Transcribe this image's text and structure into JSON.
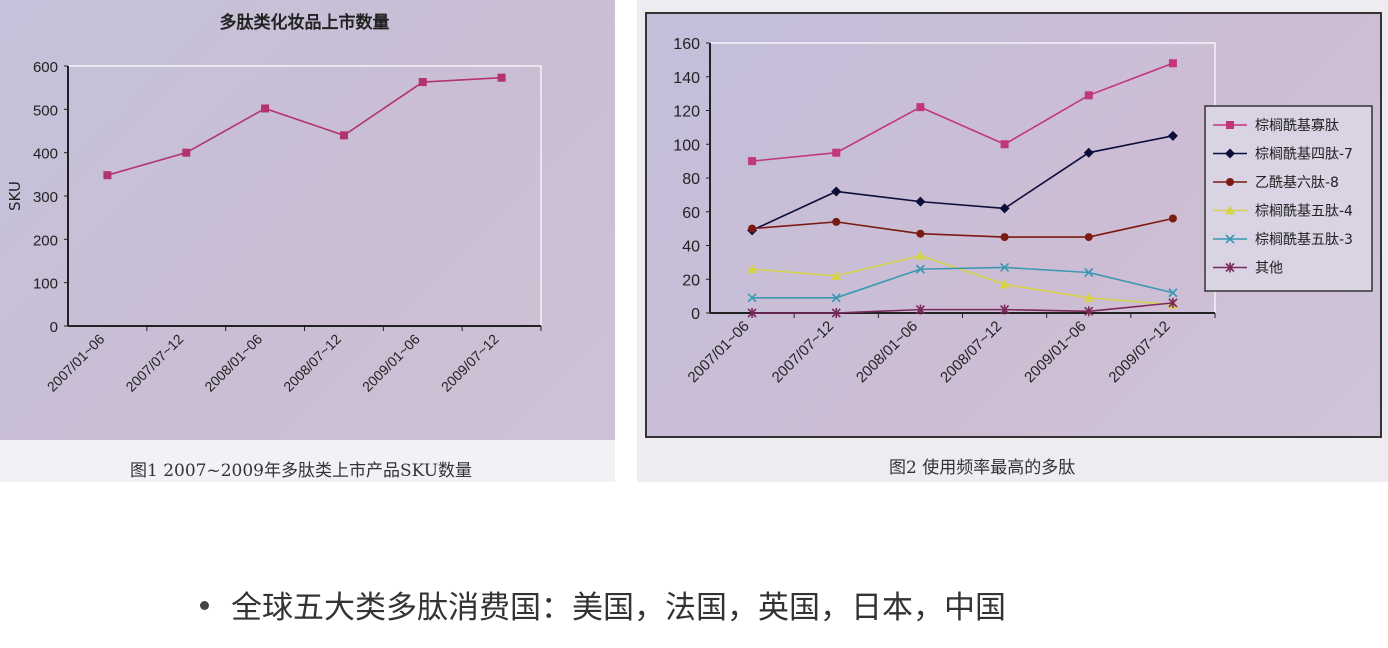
{
  "chart_data": [
    {
      "type": "line",
      "title": "多肽类化妆品上市数量",
      "ylabel": "SKU",
      "xlabel": "",
      "caption": "图1 2007~2009年多肽类上市产品SKU数量",
      "categories": [
        "2007/01~06",
        "2007/07~12",
        "2008/01~06",
        "2008/07~12",
        "2009/01~06",
        "2009/07~12"
      ],
      "ylim": [
        0,
        600
      ],
      "yticks": [
        "0",
        "100",
        "200",
        "300",
        "400",
        "500",
        "600"
      ],
      "grid": false,
      "series": [
        {
          "values": [
            348,
            400,
            502,
            440,
            563,
            573
          ],
          "color": "#b3336e",
          "marker": "square"
        }
      ]
    },
    {
      "type": "line",
      "title": "",
      "caption": "图2 使用频率最高的多肽",
      "categories": [
        "2007/01~06",
        "2007/07~12",
        "2008/01~06",
        "2008/07~12",
        "2009/01~06",
        "2009/07~12"
      ],
      "ylim": [
        0,
        160
      ],
      "yticks": [
        "0",
        "20",
        "40",
        "60",
        "80",
        "100",
        "120",
        "140",
        "160"
      ],
      "grid": false,
      "legend": "right",
      "series": [
        {
          "name": "棕榈酰基寡肽",
          "values": [
            90,
            95,
            122,
            100,
            129,
            148
          ],
          "color": "#c2367a",
          "marker": "square"
        },
        {
          "name": "棕榈酰基四肽-7",
          "values": [
            49,
            72,
            66,
            62,
            95,
            105
          ],
          "color": "#0d0d3a",
          "marker": "diamond"
        },
        {
          "name": "乙酰基六肽-8",
          "values": [
            50,
            54,
            47,
            45,
            45,
            56
          ],
          "color": "#7a1a12",
          "marker": "circle"
        },
        {
          "name": "棕榈酰基五肽-4",
          "values": [
            26,
            22,
            34,
            17,
            9,
            5
          ],
          "color": "#d6d24a",
          "marker": "triangle"
        },
        {
          "name": "棕榈酰基五肽-3",
          "values": [
            9,
            9,
            26,
            27,
            24,
            12
          ],
          "color": "#3a98b0",
          "marker": "x"
        },
        {
          "name": "其他",
          "values": [
            0,
            0,
            2,
            2,
            1,
            6
          ],
          "color": "#7a2a5a",
          "marker": "star"
        }
      ]
    }
  ],
  "bullet": "全球五大类多肽消费国：美国，法国，英国，日本，中国"
}
